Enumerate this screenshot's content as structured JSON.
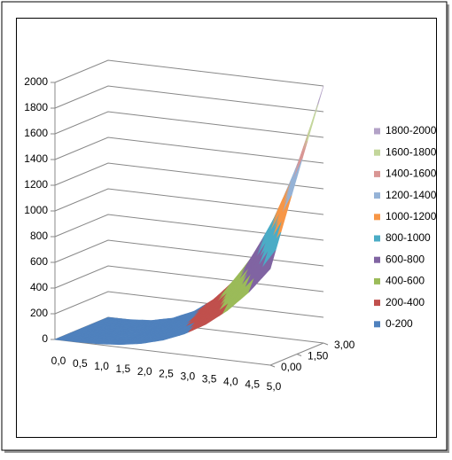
{
  "chart_data": {
    "type": "surface",
    "categories": [
      "0,0",
      "0,5",
      "1,0",
      "1,5",
      "2,0",
      "2,5",
      "3,0",
      "3,5",
      "4,0",
      "4,5",
      "5,0"
    ],
    "series": [
      {
        "name": "0,00",
        "values": [
          0,
          1,
          6,
          20,
          48,
          94,
          162,
          257,
          384,
          547,
          750
        ]
      },
      {
        "name": "1,50",
        "values": [
          0,
          1,
          11,
          37,
          88,
          172,
          297,
          472,
          704,
          1002,
          1375
        ]
      },
      {
        "name": "3,00",
        "values": [
          0,
          2,
          16,
          54,
          128,
          250,
          432,
          686,
          1024,
          1458,
          2000
        ]
      }
    ],
    "zlim": [
      0,
      2000
    ],
    "zticks": [
      0,
      200,
      400,
      600,
      800,
      1000,
      1200,
      1400,
      1600,
      1800,
      2000
    ],
    "bands": [
      {
        "name": "1800-2000",
        "color": "#B3A2C7"
      },
      {
        "name": "1600-1800",
        "color": "#C3D69B"
      },
      {
        "name": "1400-1600",
        "color": "#D99694"
      },
      {
        "name": "1200-1400",
        "color": "#95B3D7"
      },
      {
        "name": "1000-1200",
        "color": "#F79646"
      },
      {
        "name": "800-1000",
        "color": "#4BACC6"
      },
      {
        "name": "600-800",
        "color": "#8064A2"
      },
      {
        "name": "400-600",
        "color": "#9BBB59"
      },
      {
        "name": "200-400",
        "color": "#C0504D"
      },
      {
        "name": "0-200",
        "color": "#4F81BD"
      }
    ],
    "grid": true
  }
}
